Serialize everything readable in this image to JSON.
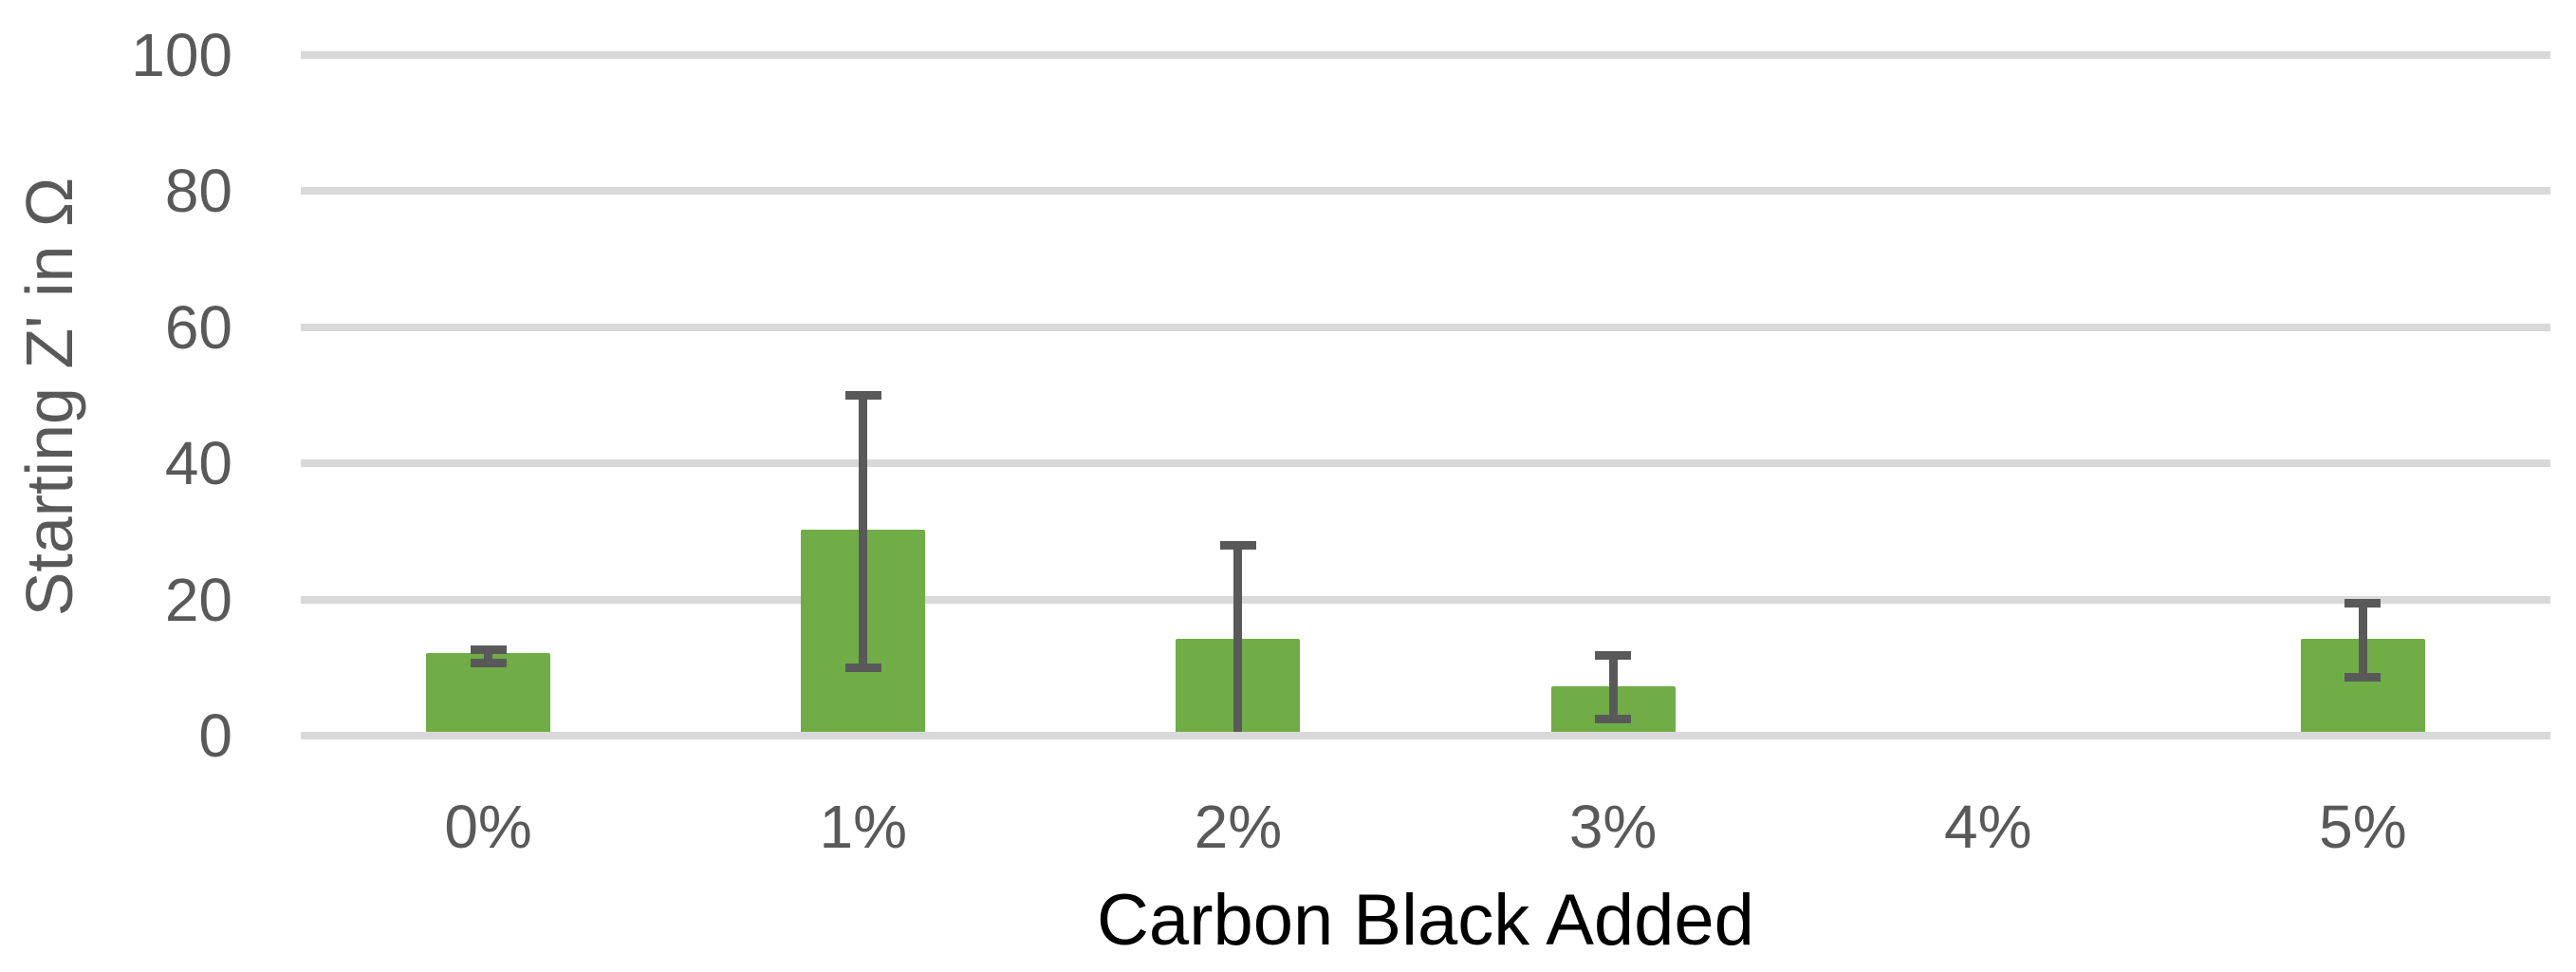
{
  "chart_data": {
    "type": "bar",
    "title": "",
    "xlabel": "Carbon Black Added",
    "ylabel": "Starting Z' in Ω",
    "categories": [
      "0%",
      "1%",
      "2%",
      "3%",
      "4%",
      "5%"
    ],
    "values": [
      12.2,
      30.3,
      14.2,
      7.3,
      0,
      14.2
    ],
    "error_bars": {
      "high": [
        12.6,
        50,
        28,
        11.8,
        null,
        19.5
      ],
      "low": [
        10.7,
        10,
        0,
        2.4,
        null,
        8.6
      ],
      "low_cap_visible": [
        true,
        true,
        false,
        true,
        false,
        true
      ]
    },
    "ylim": [
      0,
      100
    ],
    "ytick_interval": 20,
    "yticks": [
      0,
      20,
      40,
      60,
      80,
      100
    ],
    "grid": true,
    "legend": "none",
    "colors": {
      "bar": "#70AD47",
      "error_bar": "#595959",
      "gridline": "#D9D9D9",
      "tick_label": "#595959",
      "axis_title": "#000000",
      "background": "#FFFFFF"
    }
  }
}
